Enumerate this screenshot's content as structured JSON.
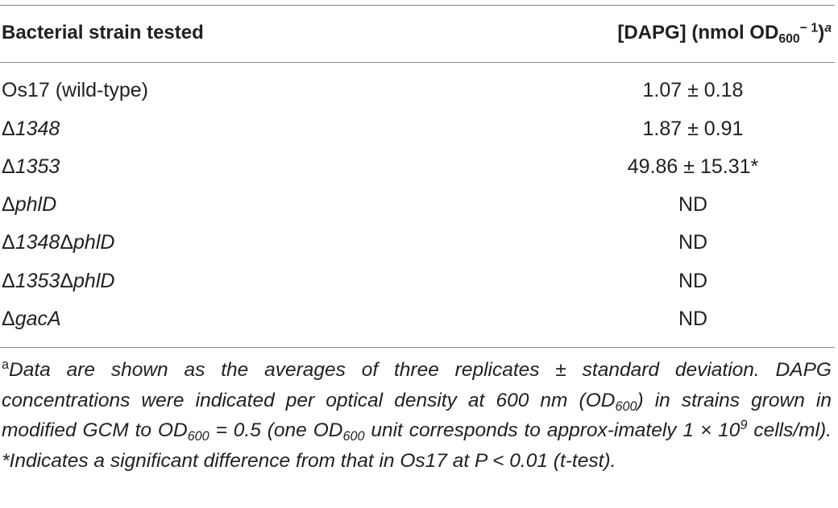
{
  "table": {
    "header": [
      "Bacterial strain tested",
      [
        "[DAPG] (nmol OD",
        "600",
        "− 1",
        ")",
        "a"
      ]
    ],
    "rows": [
      [
        [
          "Os17 (wild-type)"
        ],
        "1.07 ± 0.18"
      ],
      [
        [
          "Δ",
          "1348"
        ],
        "1.87 ± 0.91"
      ],
      [
        [
          "Δ",
          "1353"
        ],
        "49.86 ± 15.31*"
      ],
      [
        [
          "Δ",
          "phlD"
        ],
        "ND"
      ],
      [
        [
          "Δ",
          "1348",
          "Δ",
          "phlD"
        ],
        "ND"
      ],
      [
        [
          "Δ",
          "1353",
          "Δ",
          "phlD"
        ],
        "ND"
      ],
      [
        [
          "Δ",
          "gacA"
        ],
        "ND"
      ]
    ],
    "footnote": [
      "a",
      "Data are shown as the averages of three replicates ± standard deviation. DAPG concentrations were indicated per optical density at 600 nm (OD",
      "600",
      ") in strains grown in modified GCM to OD",
      "600",
      " = 0.5 (one OD",
      "600",
      " unit corresponds to approx-imately 1 × 10",
      "9",
      " cells/ml). *Indicates a significant difference from that in Os17 at P < 0.01 (t-test)."
    ]
  }
}
